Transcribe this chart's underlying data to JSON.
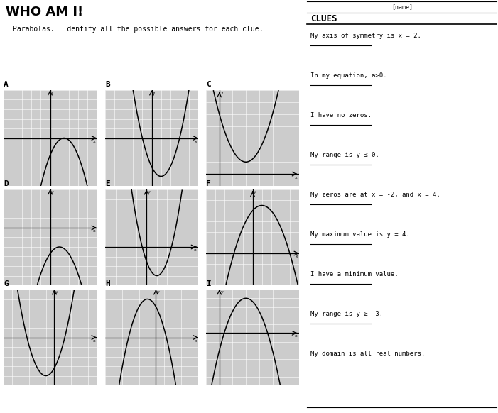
{
  "title": "WHO AM I!",
  "subtitle": "Parabolas.  Identify all the possible answers for each clue.",
  "name_label": "[name]",
  "clues_title": "CLUES",
  "clues": [
    "My axis of symmetry is x = 2.",
    "In my equation, a>0.",
    "I have no zeros.",
    "My range is y ≤ 0.",
    "My zeros are at x = -2, and x = 4.",
    "My maximum value is y = 4.",
    "I have a minimum value.",
    "My range is y ≥ -3.",
    "My domain is all real numbers."
  ],
  "graph_labels": [
    "A",
    "B",
    "C",
    "D",
    "E",
    "F",
    "G",
    "H",
    "I"
  ],
  "bg_color": "#cccccc",
  "grid_color": "#ffffff",
  "axis_color": "#000000",
  "panels": [
    {
      "label": "A",
      "func": "neg_shift_right",
      "xlim": [
        -6,
        6
      ],
      "ylim": [
        -5,
        5
      ],
      "vertex": [
        1,
        0
      ],
      "a": -1
    },
    {
      "label": "B",
      "func": "pos_shift",
      "xlim": [
        -5,
        5
      ],
      "ylim": [
        -5,
        5
      ],
      "vertex": [
        1,
        -4
      ],
      "a": 1
    },
    {
      "label": "C",
      "func": "pos_no_zero",
      "xlim": [
        -1,
        6
      ],
      "ylim": [
        -1,
        7
      ],
      "vertex": [
        2,
        1
      ],
      "a": 1
    },
    {
      "label": "D",
      "func": "neg_below",
      "xlim": [
        -5,
        5
      ],
      "ylim": [
        -6,
        4
      ],
      "vertex": [
        1,
        -1
      ],
      "a": -1
    },
    {
      "label": "E",
      "func": "pos_narrow",
      "xlim": [
        -4,
        5
      ],
      "ylim": [
        -4,
        6
      ],
      "vertex": [
        1,
        -3
      ],
      "a": 1.5
    },
    {
      "label": "F",
      "func": "neg_zeros",
      "xlim": [
        -5,
        5
      ],
      "ylim": [
        -3,
        6
      ],
      "vertex": [
        1,
        4.5
      ],
      "a": -0.5
    },
    {
      "label": "G",
      "func": "pos_shifted",
      "xlim": [
        -5,
        5
      ],
      "ylim": [
        -5,
        5
      ],
      "vertex": [
        -1,
        -4
      ],
      "a": 1
    },
    {
      "label": "H",
      "func": "neg_wide",
      "xlim": [
        -5,
        5
      ],
      "ylim": [
        -5,
        5
      ],
      "vertex": [
        -1,
        4
      ],
      "a": -1
    },
    {
      "label": "I",
      "func": "neg_right",
      "xlim": [
        -1,
        7
      ],
      "ylim": [
        -6,
        5
      ],
      "vertex": [
        2,
        4
      ],
      "a": -2
    }
  ]
}
